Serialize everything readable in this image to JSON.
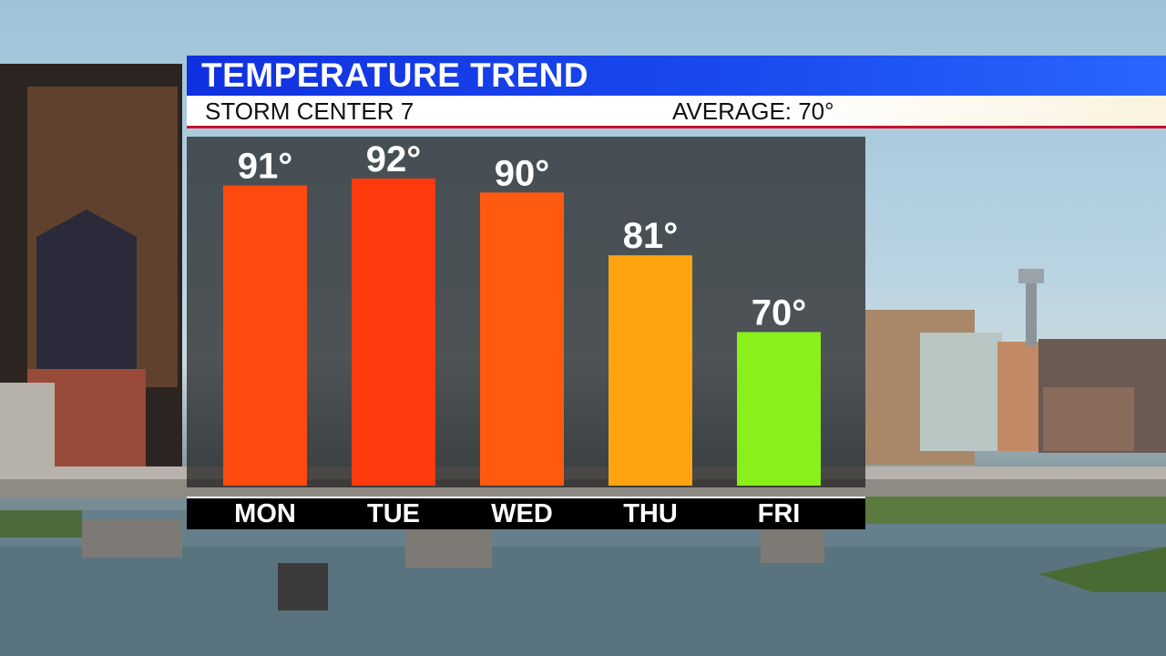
{
  "header": {
    "title": "TEMPERATURE TREND",
    "station": "STORM CENTER 7",
    "average": "AVERAGE: 70°"
  },
  "chart_data": {
    "type": "bar",
    "categories": [
      "MON",
      "TUE",
      "WED",
      "THU",
      "FRI"
    ],
    "values": [
      91,
      92,
      90,
      81,
      70
    ],
    "value_labels": [
      "91°",
      "92°",
      "90°",
      "81°",
      "70°"
    ],
    "colors": [
      "#ff4a10",
      "#ff3a0c",
      "#ff5a10",
      "#ffa410",
      "#8af01a"
    ],
    "title": "TEMPERATURE TREND",
    "ylim": [
      48,
      98
    ],
    "grid": false,
    "legend": "none"
  },
  "colors": {
    "title_bar": "#1a40ee",
    "accent_line": "#c8102e",
    "panel": "#1e1e1e"
  }
}
